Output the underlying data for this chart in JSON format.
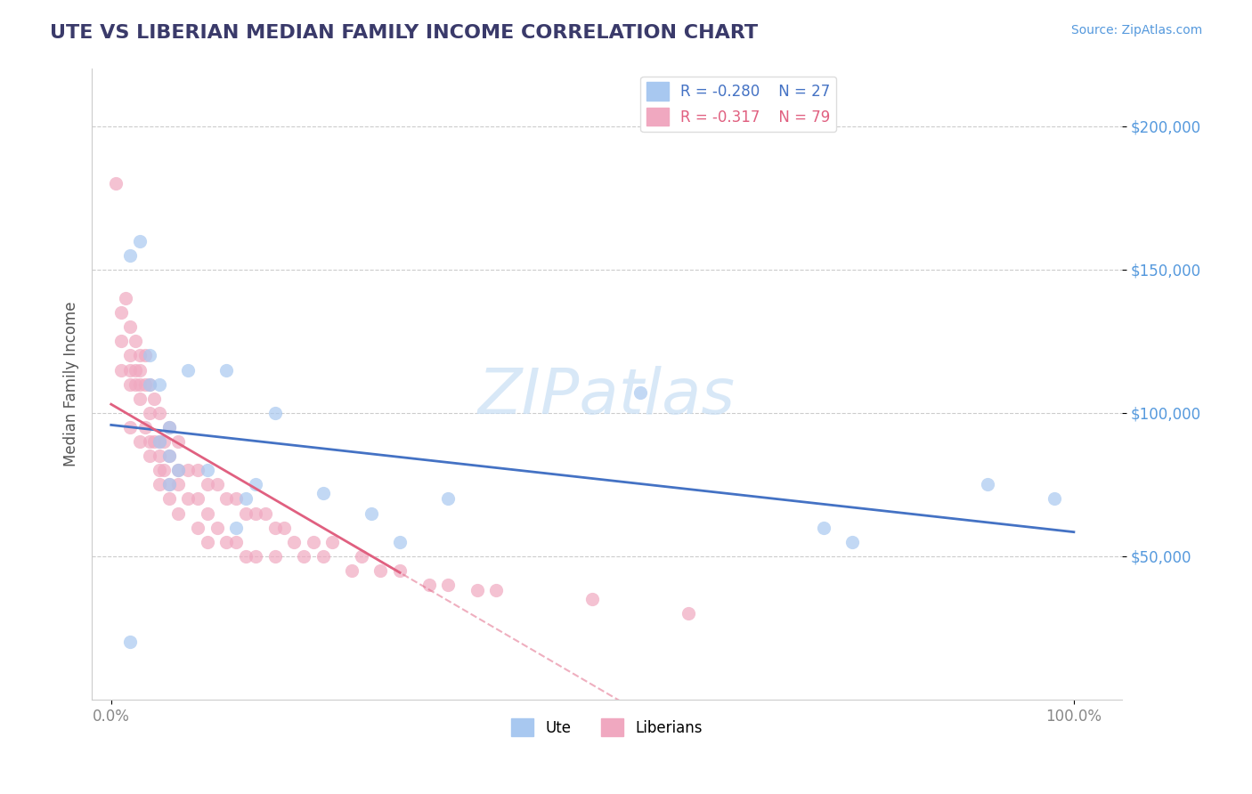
{
  "title": "UTE VS LIBERIAN MEDIAN FAMILY INCOME CORRELATION CHART",
  "source": "Source: ZipAtlas.com",
  "ylabel": "Median Family Income",
  "xlabel": "",
  "watermark": "ZIPatlas",
  "ute_R": -0.28,
  "ute_N": 27,
  "liberian_R": -0.317,
  "liberian_N": 79,
  "ute_color": "#a8c8f0",
  "liberian_color": "#f0a8c0",
  "ute_line_color": "#4472c4",
  "liberian_line_color": "#e06080",
  "ytick_labels": [
    "$50,000",
    "$100,000",
    "$150,000",
    "$200,000"
  ],
  "ytick_values": [
    50000,
    100000,
    150000,
    200000
  ],
  "ylim": [
    0,
    220000
  ],
  "xlim": [
    0.0,
    1.0
  ],
  "title_color": "#3a3a6a",
  "axis_label_color": "#555555",
  "ytick_color": "#5599dd",
  "xtick_labels": [
    "0.0%",
    "100.0%"
  ],
  "xtick_values": [
    0.0,
    1.0
  ],
  "ute_points_x": [
    0.02,
    0.02,
    0.03,
    0.04,
    0.04,
    0.05,
    0.05,
    0.06,
    0.06,
    0.06,
    0.07,
    0.08,
    0.1,
    0.12,
    0.13,
    0.14,
    0.15,
    0.17,
    0.22,
    0.27,
    0.3,
    0.35,
    0.55,
    0.74,
    0.77,
    0.91,
    0.98
  ],
  "ute_points_y": [
    20000,
    155000,
    160000,
    120000,
    110000,
    90000,
    110000,
    85000,
    95000,
    75000,
    80000,
    115000,
    80000,
    115000,
    60000,
    70000,
    75000,
    100000,
    72000,
    65000,
    55000,
    70000,
    107000,
    60000,
    55000,
    75000,
    70000
  ],
  "liberian_points_x": [
    0.005,
    0.01,
    0.01,
    0.01,
    0.015,
    0.02,
    0.02,
    0.02,
    0.02,
    0.02,
    0.025,
    0.025,
    0.025,
    0.03,
    0.03,
    0.03,
    0.03,
    0.03,
    0.035,
    0.035,
    0.035,
    0.04,
    0.04,
    0.04,
    0.04,
    0.045,
    0.045,
    0.05,
    0.05,
    0.05,
    0.05,
    0.05,
    0.055,
    0.055,
    0.06,
    0.06,
    0.06,
    0.06,
    0.07,
    0.07,
    0.07,
    0.07,
    0.08,
    0.08,
    0.09,
    0.09,
    0.09,
    0.1,
    0.1,
    0.1,
    0.11,
    0.11,
    0.12,
    0.12,
    0.13,
    0.13,
    0.14,
    0.14,
    0.15,
    0.15,
    0.16,
    0.17,
    0.17,
    0.18,
    0.19,
    0.2,
    0.21,
    0.22,
    0.23,
    0.25,
    0.26,
    0.28,
    0.3,
    0.33,
    0.35,
    0.38,
    0.4,
    0.5,
    0.6
  ],
  "liberian_points_y": [
    180000,
    135000,
    125000,
    115000,
    140000,
    130000,
    120000,
    115000,
    110000,
    95000,
    125000,
    115000,
    110000,
    120000,
    115000,
    110000,
    105000,
    90000,
    120000,
    110000,
    95000,
    110000,
    100000,
    90000,
    85000,
    105000,
    90000,
    100000,
    90000,
    85000,
    80000,
    75000,
    90000,
    80000,
    95000,
    85000,
    75000,
    70000,
    90000,
    80000,
    75000,
    65000,
    80000,
    70000,
    80000,
    70000,
    60000,
    75000,
    65000,
    55000,
    75000,
    60000,
    70000,
    55000,
    70000,
    55000,
    65000,
    50000,
    65000,
    50000,
    65000,
    60000,
    50000,
    60000,
    55000,
    50000,
    55000,
    50000,
    55000,
    45000,
    50000,
    45000,
    45000,
    40000,
    40000,
    38000,
    38000,
    35000,
    30000
  ]
}
